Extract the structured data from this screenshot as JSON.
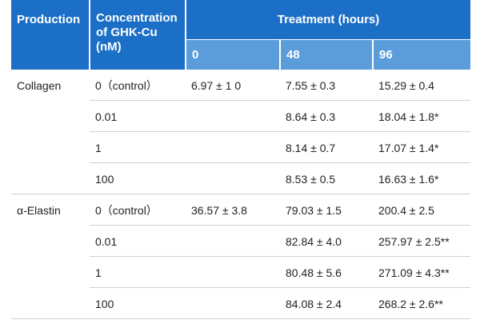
{
  "table": {
    "header": {
      "production": "Production",
      "concentration": "Concentration of GHK-Cu (nM)",
      "treatment": "Treatment (hours)",
      "hours": [
        "0",
        "48",
        "96"
      ]
    },
    "groups": [
      {
        "production": "Collagen",
        "rows": [
          {
            "concentration": "0（control）",
            "t0": "6.97 ± 1 0",
            "t48": "7.55 ± 0.3",
            "t96": "15.29 ± 0.4"
          },
          {
            "concentration": "0.01",
            "t48": "8.64 ± 0.3",
            "t96": "18.04 ± 1.8*"
          },
          {
            "concentration": "1",
            "t48": "8.14 ± 0.7",
            "t96": "17.07 ± 1.4*"
          },
          {
            "concentration": "100",
            "t48": "8.53 ± 0.5",
            "t96": "16.63 ± 1.6*"
          }
        ]
      },
      {
        "production": "α-Elastin",
        "rows": [
          {
            "concentration": "0（control）",
            "t0": "36.57 ± 3.8",
            "t48": "79.03 ± 1.5",
            "t96": "200.4 ± 2.5"
          },
          {
            "concentration": "0.01",
            "t48": "82.84 ± 4.0",
            "t96": "257.97 ± 2.5**"
          },
          {
            "concentration": "1",
            "t48": "80.48 ± 5.6",
            "t96": "271.09 ± 4.3**"
          },
          {
            "concentration": "100",
            "t48": "84.08 ± 2.4",
            "t96": "268.2 ± 2.6**"
          }
        ]
      }
    ]
  }
}
